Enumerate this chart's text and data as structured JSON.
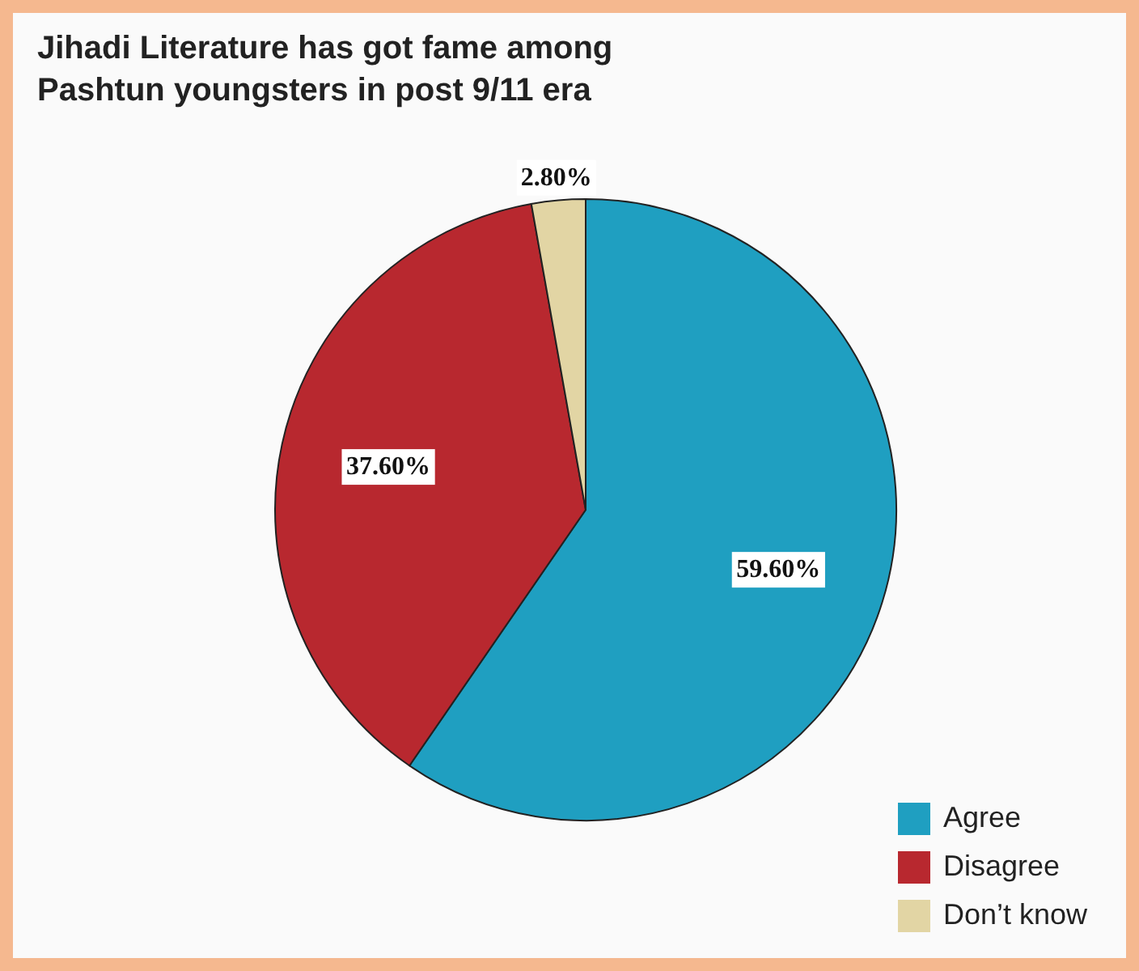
{
  "chart_data": {
    "type": "pie",
    "title": "Jihadi Literature has got fame among Pashtun youngsters in post 9/11 era",
    "categories": [
      "Agree",
      "Disagree",
      "Don’t know"
    ],
    "values": [
      59.6,
      37.6,
      2.8
    ],
    "colors": [
      "#1f9fc1",
      "#b8282f",
      "#e2d5a4"
    ],
    "value_labels": [
      "59.60%",
      "37.60%",
      "2.80%"
    ],
    "legend": "bottom right"
  }
}
